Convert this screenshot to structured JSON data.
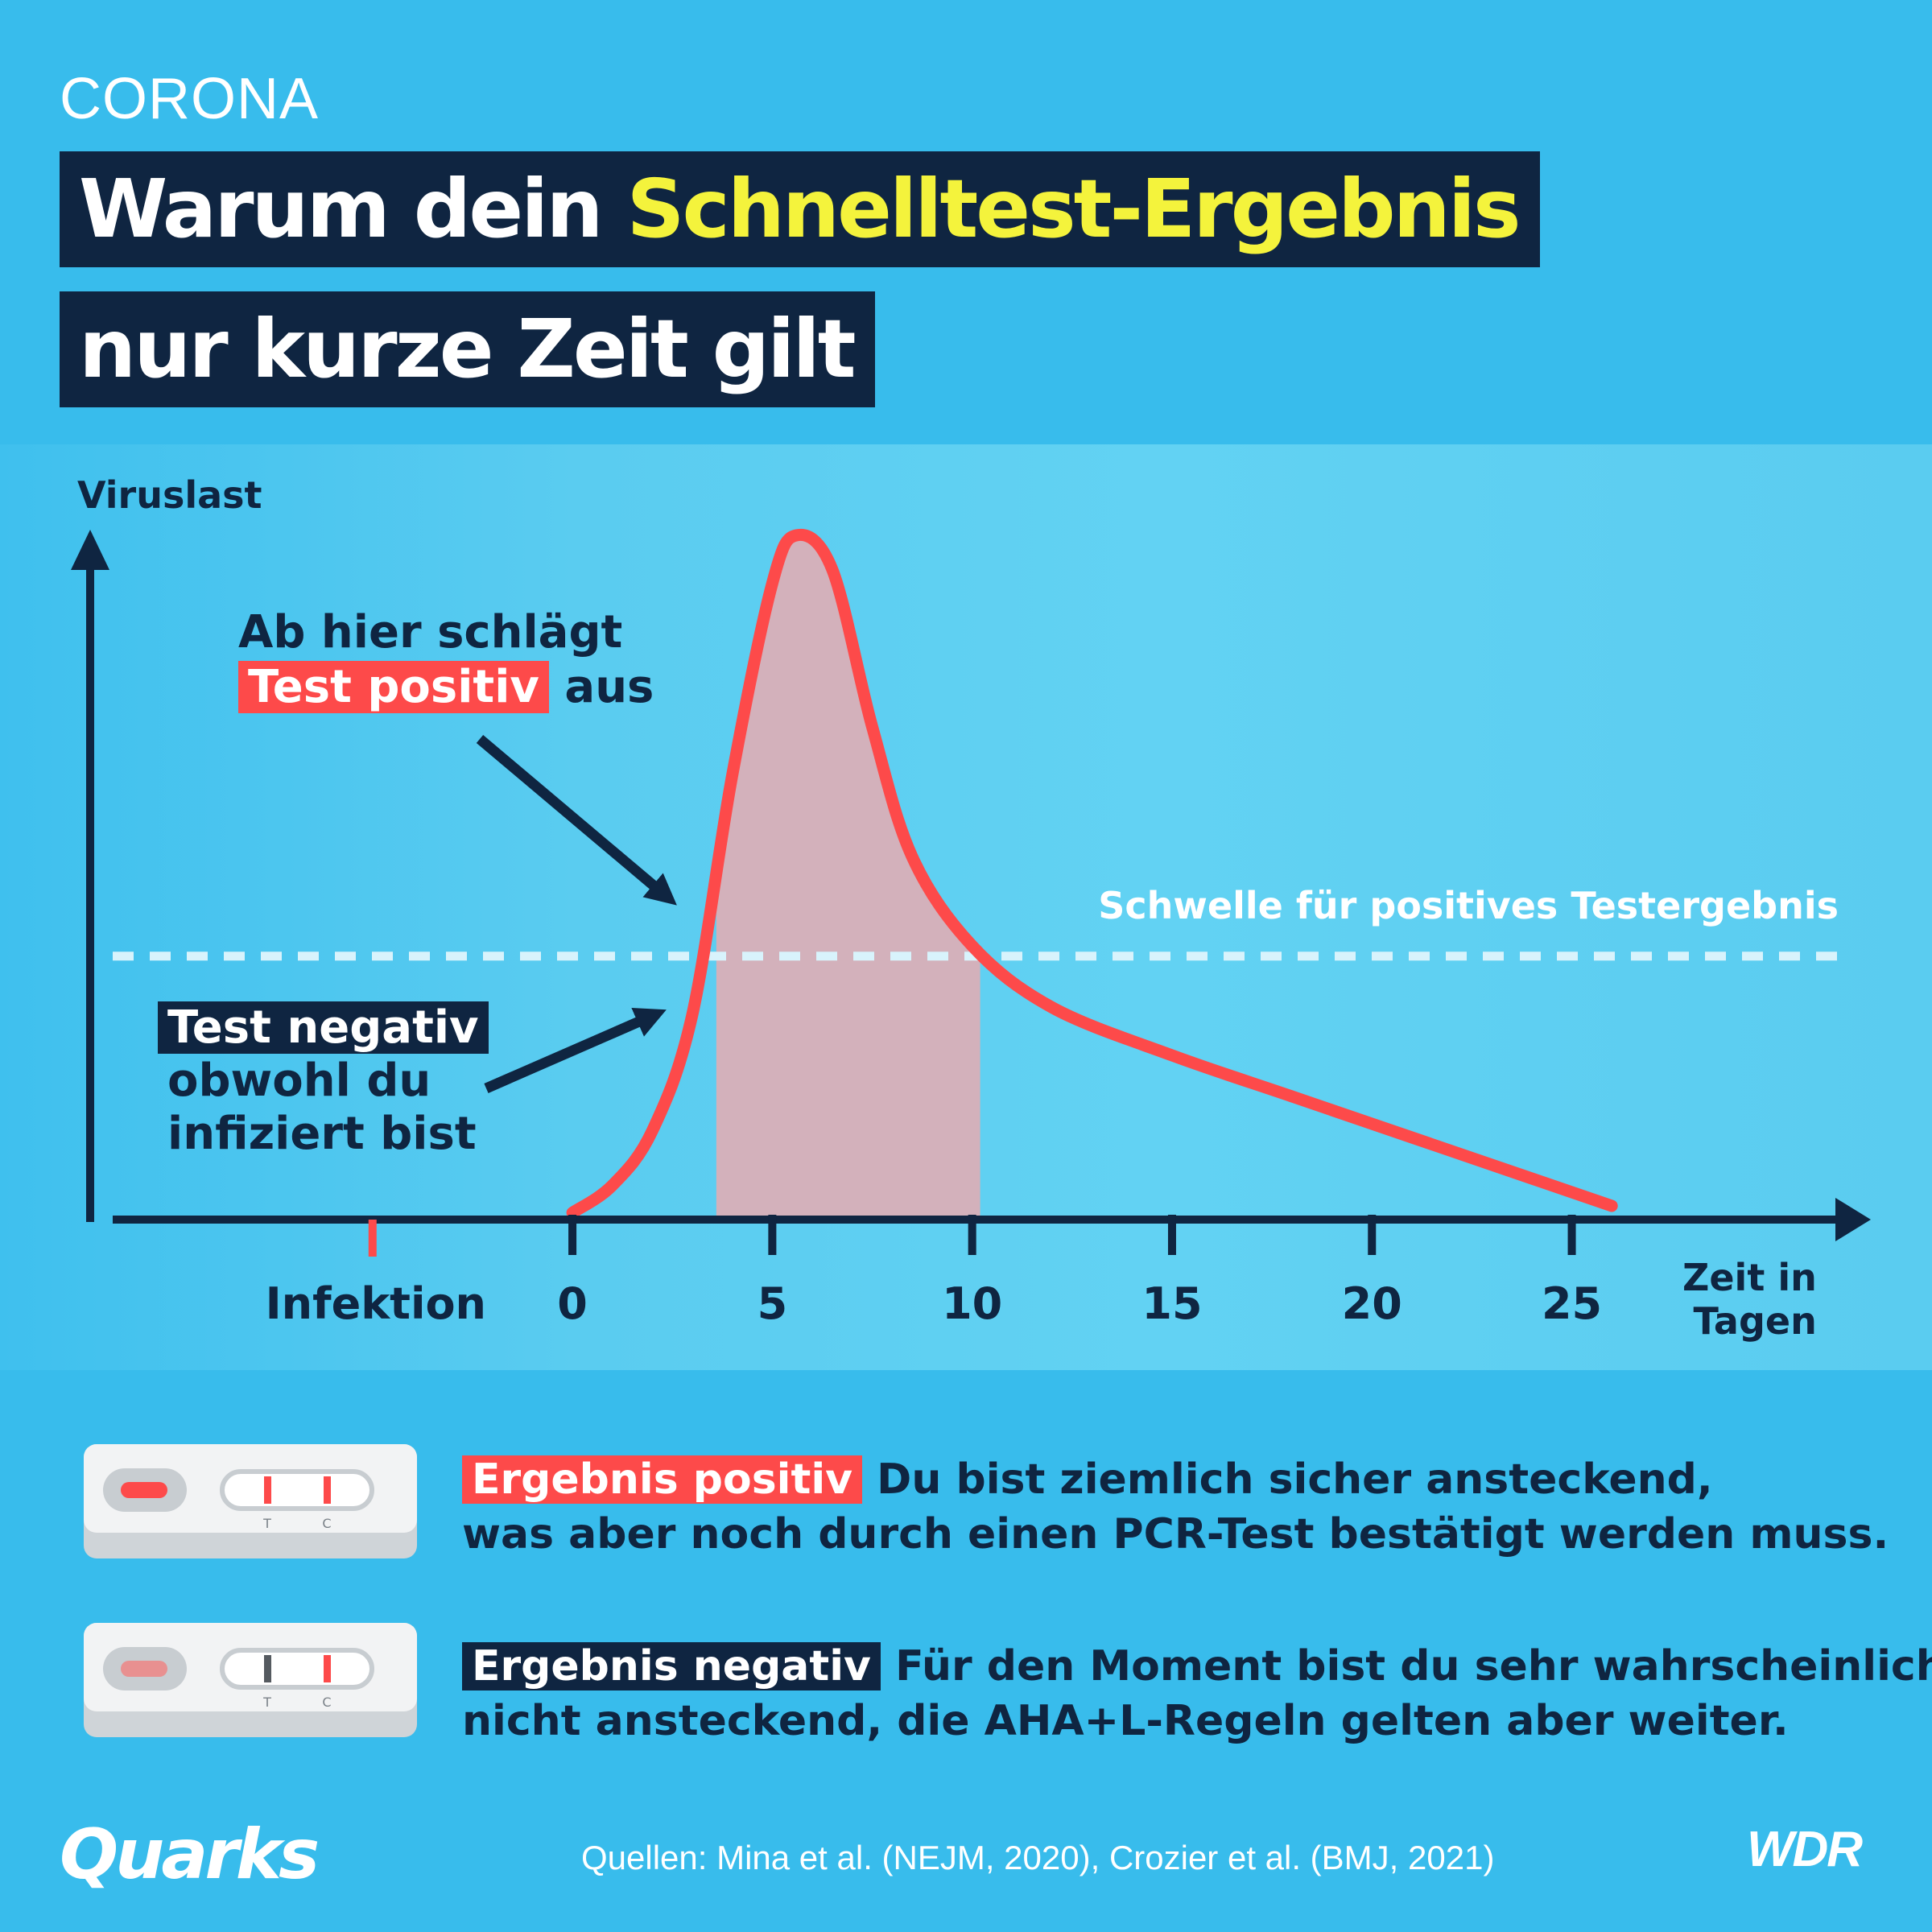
{
  "header": {
    "kicker": "CORONA",
    "title_part1": "Warum dein ",
    "title_highlight": "Schnelltest-Ergebnis",
    "title_line2": "nur kurze Zeit gilt"
  },
  "annotations": {
    "positive_line1": "Ab hier schlägt",
    "positive_tag": "Test positiv",
    "positive_line2_rest": " aus",
    "negative_tag": "Test negativ",
    "negative_line2": "obwohl du",
    "negative_line3": "infiziert bist",
    "threshold_label": "Schwelle für positives Testergebnis"
  },
  "chart_data": {
    "type": "area",
    "ylabel": "Viruslast",
    "xlabel_line1": "Zeit in",
    "xlabel_line2": "Tagen",
    "infection_label": "Infektion",
    "infection_x": -5,
    "x_ticks": [
      0,
      5,
      10,
      15,
      20,
      25
    ],
    "x_tick_labels": [
      "0",
      "5",
      "10",
      "15",
      "20",
      "25"
    ],
    "xlim": [
      -11.5,
      32.5
    ],
    "ylim": [
      0,
      1
    ],
    "threshold": 0.385,
    "shaded_x_range": [
      3.6,
      10.2
    ],
    "series": [
      {
        "x": [
          0,
          1,
          2,
          3,
          4,
          5,
          5.6,
          6.5,
          7.5,
          8.5,
          10,
          12,
          15,
          18,
          21,
          24,
          26
        ],
        "values": [
          0.01,
          0.05,
          0.13,
          0.3,
          0.65,
          0.93,
          1.0,
          0.95,
          0.72,
          0.53,
          0.4,
          0.31,
          0.24,
          0.18,
          0.12,
          0.06,
          0.02
        ]
      }
    ],
    "colors": {
      "curve": "#FD4A4A",
      "shade": "#D3B1BB",
      "axis": "#0F2541",
      "threshold": "#D8F3FC"
    }
  },
  "results": {
    "positive_tag": "Ergebnis positiv",
    "positive_line1_rest": " Du bist ziemlich sicher ansteckend,",
    "positive_line2": "was aber noch durch einen PCR-Test bestätigt werden muss.",
    "negative_tag": "Ergebnis negativ",
    "negative_line1_rest": " Für den Moment bist du sehr wahrscheinlich",
    "negative_line2": "nicht ansteckend, die AHA+L-Regeln gelten aber weiter.",
    "device_t": "T",
    "device_c": "C"
  },
  "footer": {
    "brand": "Quarks",
    "sources": "Quellen: Mina et al. (NEJM, 2020), Crozier et al. (BMJ, 2021)",
    "broadcaster": "WDR"
  },
  "colors": {
    "background": "#38BCEC",
    "navy": "#0F2541",
    "red": "#FD4A4A",
    "yellow": "#F4F33C"
  }
}
